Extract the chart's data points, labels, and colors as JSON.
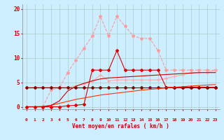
{
  "x": [
    0,
    1,
    2,
    3,
    4,
    5,
    6,
    7,
    8,
    9,
    10,
    11,
    12,
    13,
    14,
    15,
    16,
    17,
    18,
    19,
    20,
    21,
    22,
    23
  ],
  "background_color": "#cceeff",
  "grid_color": "#aacccc",
  "xlabel": "Vent moyen/en rafales ( km/h )",
  "xlabel_color": "#cc0000",
  "yticks": [
    0,
    5,
    10,
    15,
    20
  ],
  "ylim": [
    -0.5,
    21
  ],
  "xlim": [
    -0.5,
    23.5
  ],
  "series": [
    {
      "name": "light_pink_dashed_star",
      "color": "#ff9999",
      "linewidth": 0.8,
      "marker": "*",
      "markersize": 3,
      "linestyle": "--",
      "data": [
        0,
        0,
        0,
        3.5,
        3.8,
        7.0,
        9.5,
        12.0,
        14.5,
        18.5,
        14.5,
        18.5,
        16.5,
        14.5,
        14.0,
        14.0,
        11.5,
        7.5,
        7.5,
        7.5,
        7.5,
        7.5,
        7.5,
        7.5
      ]
    },
    {
      "name": "pink_solid_plus",
      "color": "#ffaaaa",
      "linewidth": 0.8,
      "marker": "+",
      "markersize": 3,
      "linestyle": "-",
      "data": [
        4.0,
        4.0,
        4.0,
        4.0,
        4.0,
        4.0,
        4.3,
        4.7,
        5.2,
        6.5,
        5.3,
        5.5,
        5.5,
        5.5,
        5.5,
        5.5,
        5.5,
        5.8,
        6.2,
        6.5,
        7.0,
        7.0,
        7.0,
        7.5
      ]
    },
    {
      "name": "red_spiky",
      "color": "#dd0000",
      "linewidth": 0.8,
      "marker": "D",
      "markersize": 2,
      "linestyle": "-",
      "data": [
        0,
        0,
        0,
        0,
        0,
        0.2,
        0.3,
        0.5,
        7.5,
        7.5,
        7.5,
        11.5,
        7.5,
        7.5,
        7.5,
        7.5,
        7.5,
        4.0,
        4.0,
        4.0,
        4.0,
        4.0,
        4.0,
        4.0
      ]
    },
    {
      "name": "dark_red_flat",
      "color": "#880000",
      "linewidth": 0.8,
      "marker": "D",
      "markersize": 2,
      "linestyle": "-",
      "data": [
        4.0,
        4.0,
        4.0,
        4.0,
        4.0,
        4.0,
        4.0,
        4.0,
        4.0,
        4.0,
        4.0,
        4.0,
        4.0,
        4.0,
        4.0,
        4.0,
        4.0,
        4.0,
        4.0,
        4.0,
        4.0,
        4.0,
        4.0,
        4.0
      ]
    },
    {
      "name": "red_gradual",
      "color": "#ff3300",
      "linewidth": 0.8,
      "marker": null,
      "markersize": 0,
      "linestyle": "-",
      "data": [
        0,
        0,
        0,
        0.3,
        0.7,
        1.1,
        1.5,
        1.8,
        2.1,
        2.4,
        2.6,
        2.8,
        3.0,
        3.2,
        3.4,
        3.55,
        3.7,
        3.85,
        4.0,
        4.1,
        4.25,
        4.35,
        4.45,
        4.55
      ]
    },
    {
      "name": "red_curved_up",
      "color": "#cc0000",
      "linewidth": 0.8,
      "marker": null,
      "markersize": 0,
      "linestyle": "-",
      "data": [
        0,
        0,
        0.05,
        0.3,
        1.2,
        3.2,
        4.2,
        4.8,
        5.3,
        5.7,
        5.9,
        6.0,
        6.1,
        6.2,
        6.3,
        6.4,
        6.5,
        6.6,
        6.7,
        6.8,
        6.9,
        7.0,
        7.0,
        7.0
      ]
    }
  ],
  "arrow_color": "#cc0000",
  "tick_color": "#cc0000",
  "axis_color": "#888888",
  "ylabel_ticks": [
    "0",
    "5",
    "10",
    "15",
    "20"
  ]
}
